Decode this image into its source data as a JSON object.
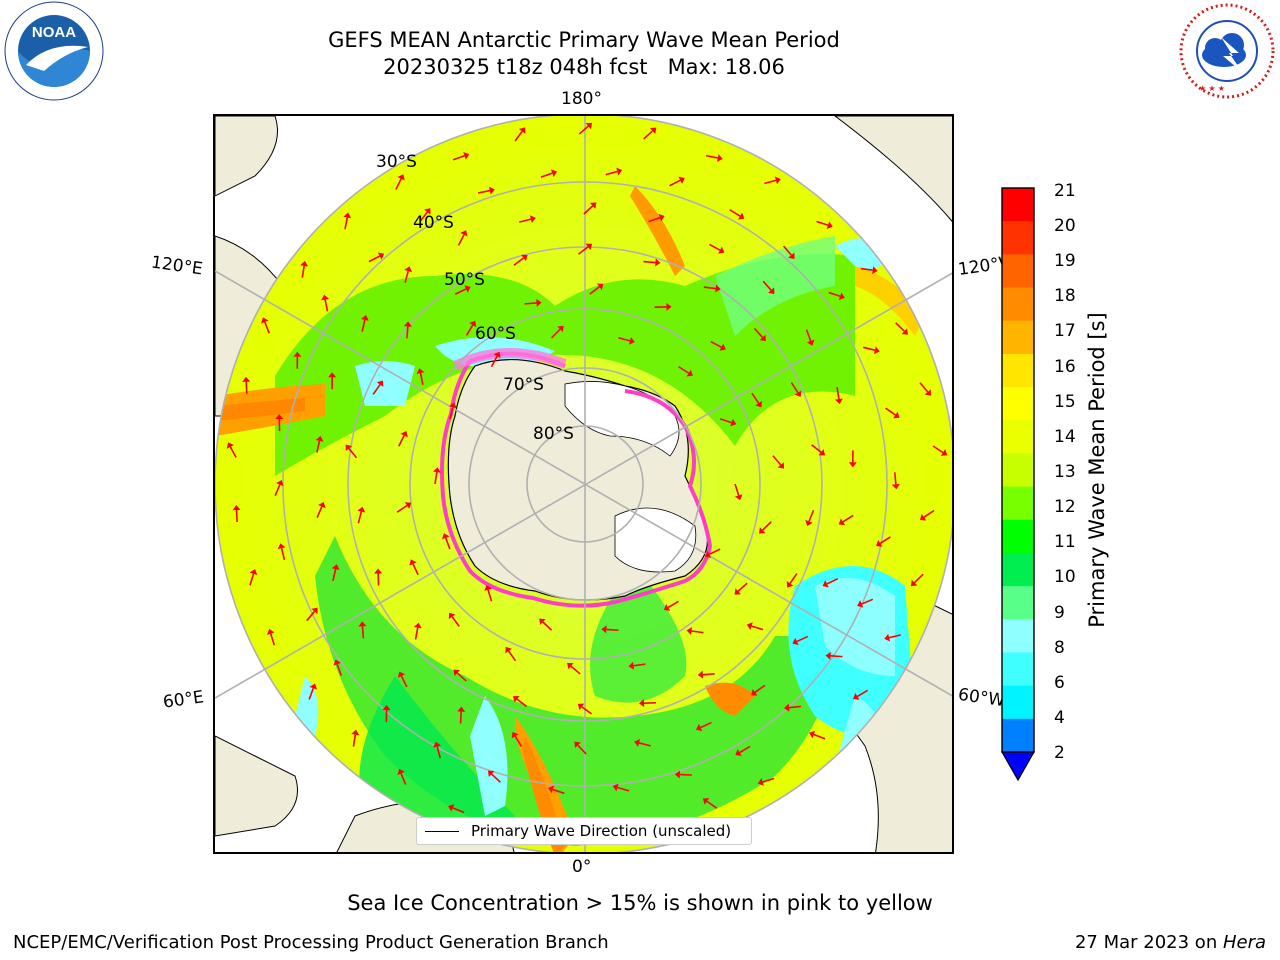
{
  "title": {
    "line1": "GEFS MEAN Antarctic Primary Wave Mean Period",
    "line2": "20230325 t18z 048h fcst   Max: 18.06"
  },
  "map": {
    "projection": "south polar stereographic",
    "longitude_labels": {
      "top": "180°",
      "bottom": "0°",
      "upper_left": "120°E",
      "upper_right": "120°W",
      "lower_left": "60°E",
      "lower_right": "60°W"
    },
    "latitude_labels": [
      "30°S",
      "40°S",
      "50°S",
      "60°S",
      "70°S",
      "80°S"
    ],
    "legend": {
      "primary_wave_direction": "Primary Wave Direction (unscaled)"
    },
    "colors": {
      "land": "#efedd9",
      "ice_shelf": "#ffffff",
      "sea_ice_edge": "#ff3ec8",
      "arrows": "#ff0000",
      "graticule": "#b0b0b0"
    }
  },
  "colorbar": {
    "label": "Primary Wave Mean Period [s]",
    "ticks": [
      "21",
      "20",
      "19",
      "18",
      "17",
      "16",
      "15",
      "14",
      "13",
      "12",
      "11",
      "10",
      "9",
      "8",
      "6",
      "4",
      "2"
    ],
    "colors_top_to_bottom": [
      "#ff0000",
      "#ff3200",
      "#ff6400",
      "#ff8c00",
      "#ffb400",
      "#ffe600",
      "#ffff00",
      "#eaff00",
      "#c8ff00",
      "#78ff00",
      "#00ff00",
      "#00ee50",
      "#58ff88",
      "#90ffff",
      "#40ffff",
      "#00f4ff",
      "#0080ff"
    ],
    "under_color": "#0000ff"
  },
  "footnote": "Sea Ice Concentration > 15% is shown in pink to yellow",
  "credits": {
    "left": "NCEP/EMC/Verification Post Processing Product Generation Branch",
    "right_date": "27 Mar 2023 on ",
    "right_machine": "Hera"
  },
  "logos": {
    "left": "NOAA",
    "left_ring": "NATIONAL OCEANIC AND ATMOSPHERIC ADMINISTRATION · U.S. DEPARTMENT OF COMMERCE",
    "right_ring": "NATIONAL WEATHER SERVICE"
  }
}
